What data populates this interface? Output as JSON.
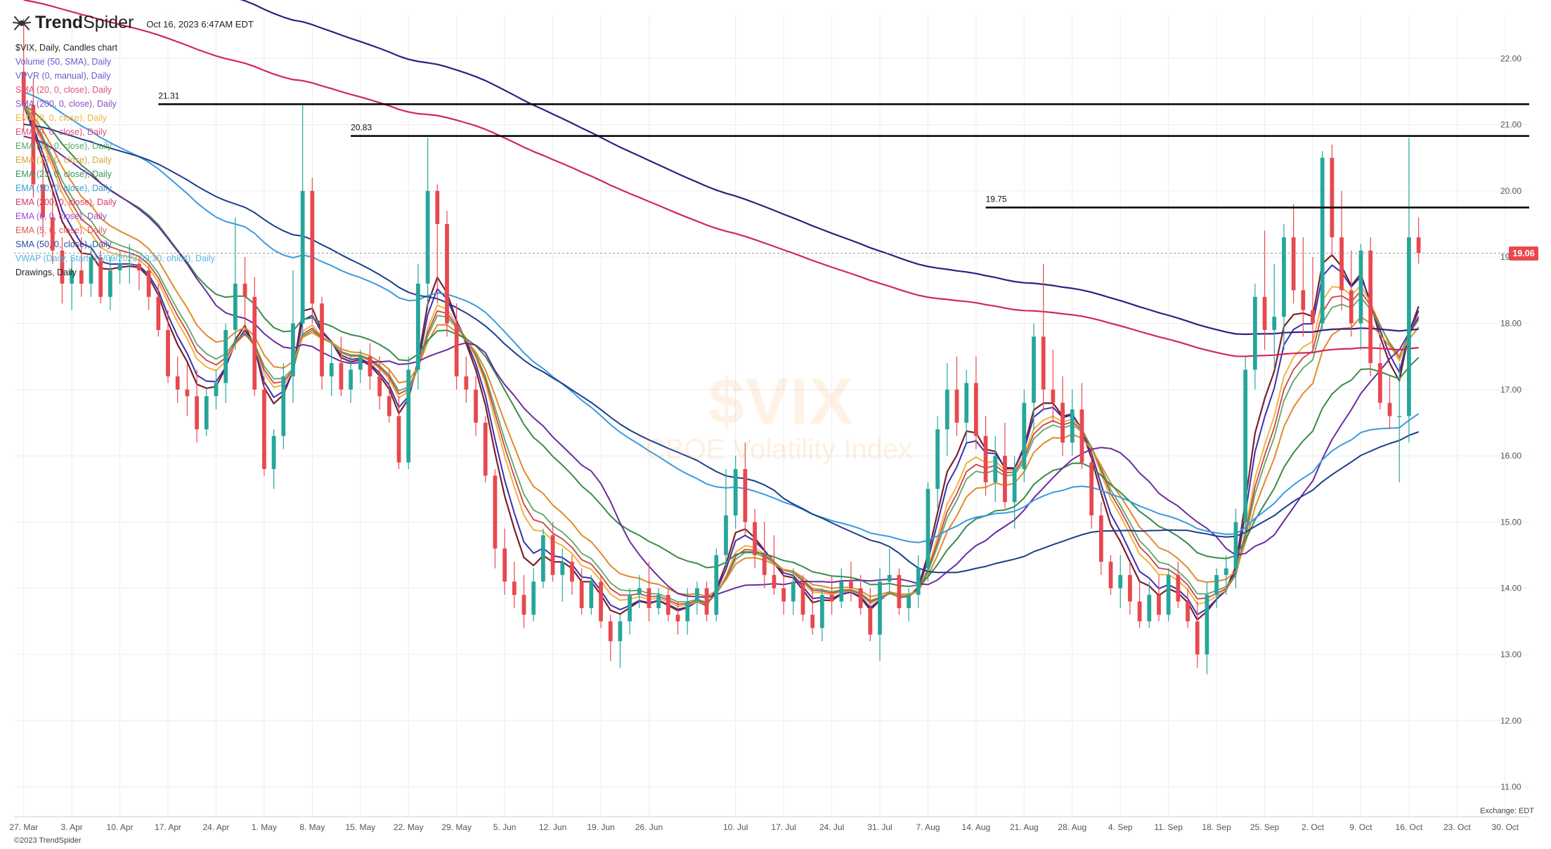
{
  "header": {
    "brand_bold": "Trend",
    "brand_light": "Spider",
    "timestamp": "Oct 16, 2023 6:47AM EDT"
  },
  "legend": [
    {
      "text": "$VIX, Daily, Candles chart",
      "color": "#222222"
    },
    {
      "text": "Volume (50, SMA), Daily",
      "color": "#6a5acd"
    },
    {
      "text": "VPVR (0, manual), Daily",
      "color": "#6a5acd"
    },
    {
      "text": "SMA (20, 0, close), Daily",
      "color": "#e0507a"
    },
    {
      "text": "SMA (200, 0, close), Daily",
      "color": "#8a4fbf"
    },
    {
      "text": "EMA (8, 0, close), Daily",
      "color": "#f0b43c"
    },
    {
      "text": "EMA (9, 0, close), Daily",
      "color": "#e0507a"
    },
    {
      "text": "EMA (10, 0, close), Daily",
      "color": "#5aa864"
    },
    {
      "text": "EMA (13, 0, close), Daily",
      "color": "#d9a23a"
    },
    {
      "text": "EMA (23, 0, close), Daily",
      "color": "#3a9a5a"
    },
    {
      "text": "EMA (50, 0, close), Daily",
      "color": "#3aa0d8"
    },
    {
      "text": "EMA (200, 0, close), Daily",
      "color": "#d83a6a"
    },
    {
      "text": "EMA (6, 0, close), Daily",
      "color": "#a04ad0"
    },
    {
      "text": "EMA (5, 0, close), Daily",
      "color": "#e05a5a"
    },
    {
      "text": "SMA (50, 0, close), Daily",
      "color": "#2a4fa0"
    },
    {
      "text": "VWAP (Daily, Start: 15/09/2023 09:30, ohlc4), Daily",
      "color": "#58b8e0"
    },
    {
      "text": "Drawings, Daily",
      "color": "#222222"
    }
  ],
  "watermark": {
    "symbol": "$VIX",
    "name": "CBOE Volatility Index"
  },
  "exchange_label": "Exchange: EDT",
  "copyright": "©2023 TrendSpider",
  "colors": {
    "up": "#26a69a",
    "down": "#e8484e",
    "hline": "#000000",
    "grid": "#ececec"
  },
  "chart_data": {
    "type": "candlestick",
    "symbol": "$VIX",
    "interval": "Daily",
    "last_price": 19.06,
    "ylim": [
      10.55,
      22.65
    ],
    "y_ticks": [
      "11.00",
      "12.00",
      "13.00",
      "14.00",
      "15.00",
      "16.00",
      "17.00",
      "18.00",
      "19.00",
      "20.00",
      "21.00",
      "22.00"
    ],
    "x_ticks": [
      "27. Mar",
      "3. Apr",
      "10. Apr",
      "17. Apr",
      "24. Apr",
      "1. May",
      "8. May",
      "15. May",
      "22. May",
      "29. May",
      "5. Jun",
      "12. Jun",
      "19. Jun",
      "26. Jun",
      "10. Jul",
      "17. Jul",
      "24. Jul",
      "31. Jul",
      "7. Aug",
      "14. Aug",
      "21. Aug",
      "28. Aug",
      "4. Sep",
      "11. Sep",
      "18. Sep",
      "25. Sep",
      "2. Oct",
      "9. Oct",
      "16. Oct",
      "23. Oct",
      "30. Oct"
    ],
    "x_tick_pos": [
      0,
      5,
      10,
      15,
      20,
      25,
      30,
      35,
      40,
      45,
      50,
      55,
      60,
      65,
      74,
      79,
      84,
      89,
      94,
      99,
      104,
      109,
      114,
      119,
      124,
      129,
      134,
      139,
      144,
      149,
      154
    ],
    "x_range": [
      -1,
      156.5
    ],
    "horizontal_levels": [
      {
        "value": 21.31,
        "label": "21.31",
        "start_index": 14
      },
      {
        "value": 20.83,
        "label": "20.83",
        "start_index": 34
      },
      {
        "value": 19.75,
        "label": "19.75",
        "start_index": 100
      }
    ],
    "candles": [
      [
        21.8,
        22.6,
        20.9,
        21.3
      ],
      [
        21.3,
        21.7,
        19.9,
        20.1
      ],
      [
        20.1,
        20.6,
        19.3,
        19.6
      ],
      [
        19.6,
        20.1,
        18.9,
        19.1
      ],
      [
        19.1,
        19.3,
        18.3,
        18.6
      ],
      [
        18.6,
        19.0,
        18.2,
        18.8
      ],
      [
        18.8,
        19.3,
        18.4,
        18.6
      ],
      [
        18.6,
        19.2,
        18.4,
        19.0
      ],
      [
        19.0,
        19.1,
        18.3,
        18.4
      ],
      [
        18.4,
        19.0,
        18.2,
        18.8
      ],
      [
        18.8,
        19.1,
        18.6,
        18.9
      ],
      [
        18.9,
        19.2,
        18.6,
        18.9
      ],
      [
        18.9,
        19.0,
        18.5,
        18.8
      ],
      [
        18.8,
        18.9,
        18.2,
        18.4
      ],
      [
        18.4,
        18.6,
        17.8,
        17.9
      ],
      [
        17.9,
        18.2,
        17.1,
        17.2
      ],
      [
        17.2,
        17.5,
        16.8,
        17.0
      ],
      [
        17.0,
        17.4,
        16.6,
        16.9
      ],
      [
        16.9,
        17.3,
        16.2,
        16.4
      ],
      [
        16.4,
        17.0,
        16.3,
        16.9
      ],
      [
        16.9,
        17.3,
        16.7,
        17.1
      ],
      [
        17.1,
        18.0,
        16.8,
        17.9
      ],
      [
        17.9,
        19.6,
        17.6,
        18.6
      ],
      [
        18.6,
        19.0,
        17.8,
        18.4
      ],
      [
        18.4,
        18.7,
        16.9,
        17.0
      ],
      [
        17.0,
        17.2,
        15.7,
        15.8
      ],
      [
        15.8,
        16.4,
        15.5,
        16.3
      ],
      [
        16.3,
        17.4,
        16.1,
        17.2
      ],
      [
        17.2,
        18.8,
        16.8,
        18.0
      ],
      [
        18.0,
        21.3,
        17.8,
        20.0
      ],
      [
        20.0,
        20.2,
        18.0,
        18.3
      ],
      [
        18.3,
        18.4,
        17.0,
        17.2
      ],
      [
        17.2,
        17.7,
        16.9,
        17.4
      ],
      [
        17.4,
        17.8,
        16.9,
        17.0
      ],
      [
        17.0,
        17.5,
        16.8,
        17.3
      ],
      [
        17.3,
        17.6,
        17.1,
        17.5
      ],
      [
        17.5,
        17.7,
        17.0,
        17.2
      ],
      [
        17.2,
        17.5,
        16.7,
        16.9
      ],
      [
        16.9,
        17.3,
        16.5,
        16.6
      ],
      [
        16.6,
        16.9,
        15.8,
        15.9
      ],
      [
        15.9,
        17.5,
        15.8,
        17.3
      ],
      [
        17.3,
        18.9,
        17.0,
        18.6
      ],
      [
        18.6,
        20.8,
        18.2,
        20.0
      ],
      [
        20.0,
        20.1,
        18.3,
        19.5
      ],
      [
        19.5,
        19.7,
        17.8,
        18.0
      ],
      [
        18.0,
        18.3,
        17.0,
        17.2
      ],
      [
        17.2,
        17.5,
        16.8,
        17.0
      ],
      [
        17.0,
        17.2,
        16.3,
        16.5
      ],
      [
        16.5,
        16.6,
        15.6,
        15.7
      ],
      [
        15.7,
        15.8,
        14.3,
        14.6
      ],
      [
        14.6,
        14.9,
        13.9,
        14.1
      ],
      [
        14.1,
        14.4,
        13.7,
        13.9
      ],
      [
        13.9,
        14.2,
        13.4,
        13.6
      ],
      [
        13.6,
        14.3,
        13.5,
        14.1
      ],
      [
        14.1,
        14.9,
        14.0,
        14.8
      ],
      [
        14.8,
        15.0,
        14.1,
        14.2
      ],
      [
        14.2,
        14.6,
        13.8,
        14.4
      ],
      [
        14.4,
        14.5,
        13.9,
        14.1
      ],
      [
        14.1,
        14.3,
        13.6,
        13.7
      ],
      [
        13.7,
        14.2,
        13.6,
        14.1
      ],
      [
        14.1,
        14.2,
        13.4,
        13.5
      ],
      [
        13.5,
        13.6,
        12.9,
        13.2
      ],
      [
        13.2,
        13.6,
        12.8,
        13.5
      ],
      [
        13.5,
        14.0,
        13.3,
        13.9
      ],
      [
        13.9,
        14.2,
        13.7,
        14.0
      ],
      [
        14.0,
        14.4,
        13.5,
        13.7
      ],
      [
        13.7,
        14.0,
        13.6,
        13.9
      ],
      [
        13.9,
        14.0,
        13.5,
        13.6
      ],
      [
        13.6,
        13.8,
        13.3,
        13.5
      ],
      [
        13.5,
        14.0,
        13.3,
        13.8
      ],
      [
        13.8,
        14.1,
        13.6,
        14.0
      ],
      [
        14.0,
        14.1,
        13.5,
        13.6
      ],
      [
        13.6,
        14.6,
        13.5,
        14.5
      ],
      [
        14.5,
        15.8,
        14.3,
        15.1
      ],
      [
        15.1,
        16.0,
        14.9,
        15.8
      ],
      [
        15.8,
        16.2,
        14.8,
        15.0
      ],
      [
        15.0,
        15.2,
        14.3,
        14.5
      ],
      [
        14.5,
        15.0,
        14.0,
        14.2
      ],
      [
        14.2,
        14.8,
        13.9,
        14.0
      ],
      [
        14.0,
        14.2,
        13.6,
        13.8
      ],
      [
        13.8,
        14.3,
        13.6,
        14.1
      ],
      [
        14.1,
        14.2,
        13.5,
        13.6
      ],
      [
        13.6,
        14.0,
        13.3,
        13.4
      ],
      [
        13.4,
        14.0,
        13.2,
        13.9
      ],
      [
        13.9,
        14.2,
        13.6,
        13.8
      ],
      [
        13.8,
        14.3,
        13.7,
        14.1
      ],
      [
        14.1,
        14.4,
        13.8,
        14.0
      ],
      [
        14.0,
        14.2,
        13.6,
        13.7
      ],
      [
        13.7,
        14.0,
        13.2,
        13.3
      ],
      [
        13.3,
        14.3,
        12.9,
        14.1
      ],
      [
        14.1,
        14.6,
        13.9,
        14.2
      ],
      [
        14.2,
        14.3,
        13.6,
        13.7
      ],
      [
        13.7,
        14.0,
        13.5,
        13.9
      ],
      [
        13.9,
        14.5,
        13.7,
        14.3
      ],
      [
        14.3,
        15.6,
        14.1,
        15.5
      ],
      [
        15.5,
        16.6,
        15.2,
        16.4
      ],
      [
        16.4,
        17.4,
        16.0,
        17.0
      ],
      [
        17.0,
        17.5,
        16.3,
        16.5
      ],
      [
        16.5,
        17.3,
        16.2,
        17.1
      ],
      [
        17.1,
        17.5,
        16.1,
        16.3
      ],
      [
        16.3,
        16.6,
        15.4,
        15.6
      ],
      [
        15.6,
        16.3,
        15.3,
        16.0
      ],
      [
        16.0,
        16.5,
        15.2,
        15.3
      ],
      [
        15.3,
        16.0,
        14.9,
        15.8
      ],
      [
        15.8,
        17.0,
        15.6,
        16.8
      ],
      [
        16.8,
        18.0,
        16.4,
        17.8
      ],
      [
        17.8,
        18.9,
        16.7,
        17.0
      ],
      [
        17.0,
        17.6,
        16.5,
        16.8
      ],
      [
        16.8,
        17.2,
        16.0,
        16.2
      ],
      [
        16.2,
        17.0,
        16.0,
        16.7
      ],
      [
        16.7,
        17.1,
        15.8,
        15.9
      ],
      [
        15.9,
        16.1,
        14.9,
        15.1
      ],
      [
        15.1,
        15.3,
        14.2,
        14.4
      ],
      [
        14.4,
        14.5,
        13.9,
        14.0
      ],
      [
        14.0,
        14.5,
        13.7,
        14.2
      ],
      [
        14.2,
        14.4,
        13.6,
        13.8
      ],
      [
        13.8,
        14.1,
        13.4,
        13.5
      ],
      [
        13.5,
        14.1,
        13.4,
        13.9
      ],
      [
        13.9,
        14.2,
        13.5,
        13.6
      ],
      [
        13.6,
        14.3,
        13.5,
        14.2
      ],
      [
        14.2,
        14.4,
        13.7,
        13.8
      ],
      [
        13.8,
        14.0,
        13.4,
        13.5
      ],
      [
        13.5,
        13.8,
        12.8,
        13.0
      ],
      [
        13.0,
        14.1,
        12.7,
        13.9
      ],
      [
        13.9,
        14.3,
        13.7,
        14.2
      ],
      [
        14.2,
        14.5,
        13.9,
        14.3
      ],
      [
        14.3,
        15.2,
        14.0,
        15.0
      ],
      [
        15.0,
        17.5,
        14.8,
        17.3
      ],
      [
        17.3,
        18.6,
        17.0,
        18.4
      ],
      [
        18.4,
        19.4,
        17.6,
        17.9
      ],
      [
        17.9,
        18.9,
        17.3,
        18.1
      ],
      [
        18.1,
        19.5,
        17.6,
        19.3
      ],
      [
        19.3,
        19.8,
        18.3,
        18.5
      ],
      [
        18.5,
        19.3,
        17.8,
        18.2
      ],
      [
        18.2,
        19.0,
        17.6,
        18.0
      ],
      [
        18.0,
        20.6,
        17.9,
        20.5
      ],
      [
        20.5,
        20.7,
        19.0,
        19.3
      ],
      [
        19.3,
        20.0,
        18.2,
        18.5
      ],
      [
        18.5,
        19.1,
        17.8,
        18.0
      ],
      [
        18.0,
        19.2,
        17.6,
        19.1
      ],
      [
        19.1,
        19.3,
        17.2,
        17.4
      ],
      [
        17.4,
        17.7,
        16.7,
        16.8
      ],
      [
        16.8,
        17.2,
        16.4,
        16.6
      ],
      [
        16.6,
        17.4,
        15.6,
        16.6
      ],
      [
        16.6,
        20.8,
        16.2,
        19.3
      ],
      [
        19.3,
        19.6,
        18.9,
        19.06
      ]
    ]
  }
}
